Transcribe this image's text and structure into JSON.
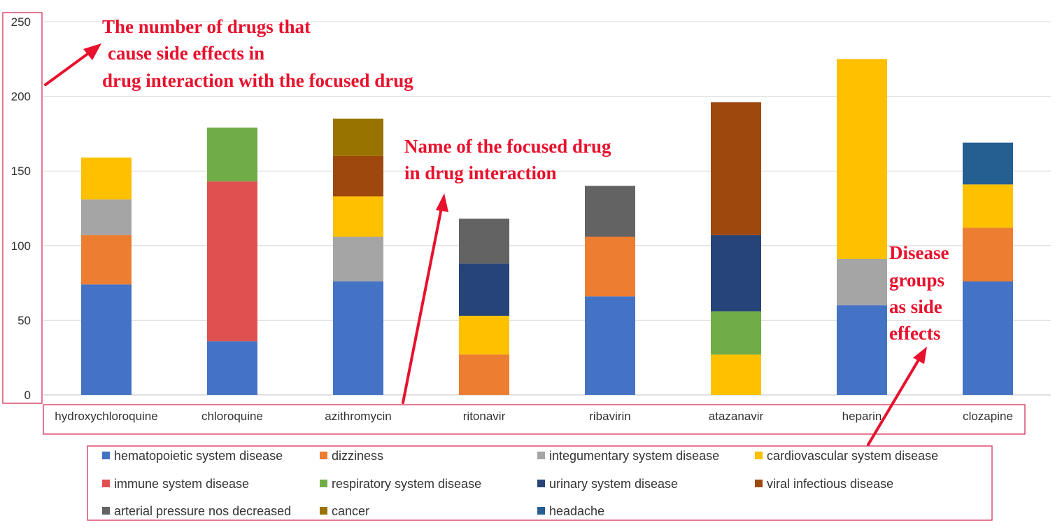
{
  "chart_data": {
    "type": "bar",
    "stacked": true,
    "categories": [
      "hydroxychloroquine",
      "chloroquine",
      "azithromycin",
      "ritonavir",
      "ribavirin",
      "atazanavir",
      "heparin",
      "clozapine"
    ],
    "ylim": [
      0,
      250
    ],
    "yticks": [
      0,
      50,
      100,
      150,
      200,
      250
    ],
    "grid": true,
    "legend_position": "bottom",
    "series": [
      {
        "name": "hematopoietic system disease",
        "color": "#4472c4",
        "values": [
          74,
          36,
          76,
          0,
          66,
          0,
          60,
          76
        ]
      },
      {
        "name": "dizziness",
        "color": "#ed7d31",
        "values": [
          33,
          0,
          0,
          27,
          40,
          0,
          0,
          36
        ]
      },
      {
        "name": "integumentary system disease",
        "color": "#a5a5a5",
        "values": [
          24,
          0,
          30,
          0,
          0,
          0,
          31,
          0
        ]
      },
      {
        "name": "cardiovascular system disease",
        "color": "#ffc000",
        "values": [
          28,
          0,
          27,
          26,
          0,
          27,
          134,
          29
        ]
      },
      {
        "name": "immune system disease",
        "color": "#e15050",
        "values": [
          0,
          107,
          0,
          0,
          0,
          0,
          0,
          0
        ]
      },
      {
        "name": "respiratory system disease",
        "color": "#70ad47",
        "values": [
          0,
          36,
          0,
          0,
          0,
          29,
          0,
          0
        ]
      },
      {
        "name": "urinary system disease",
        "color": "#264478",
        "values": [
          0,
          0,
          0,
          35,
          0,
          51,
          0,
          0
        ]
      },
      {
        "name": "viral infectious disease",
        "color": "#9e480e",
        "values": [
          0,
          0,
          27,
          0,
          0,
          89,
          0,
          0
        ]
      },
      {
        "name": "arterial pressure nos decreased",
        "color": "#636363",
        "values": [
          0,
          0,
          0,
          30,
          34,
          0,
          0,
          0
        ]
      },
      {
        "name": "cancer",
        "color": "#997300",
        "values": [
          0,
          0,
          25,
          0,
          0,
          0,
          0,
          0
        ]
      },
      {
        "name": "headache",
        "color": "#255e91",
        "values": [
          0,
          0,
          0,
          0,
          0,
          0,
          0,
          28
        ]
      }
    ],
    "annotations": [
      "The  number of drugs that",
      "cause side effects in",
      "drug interaction with the focused drug",
      "Name of the focused drug",
      "in drug interaction",
      "Disease",
      "groups",
      "as side",
      "effects"
    ],
    "annotation_color": "#e8112d"
  }
}
